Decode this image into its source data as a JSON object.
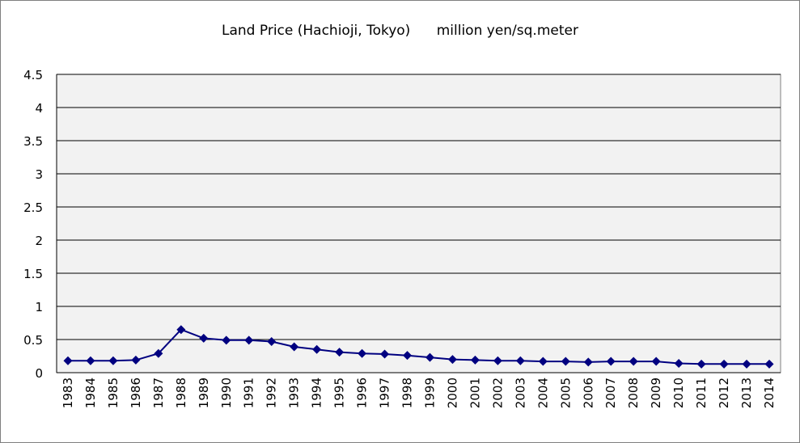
{
  "chart_data": {
    "type": "line",
    "title": "Land Price (Hachioji, Tokyo)      million yen/sq.meter",
    "xlabel": "",
    "ylabel": "",
    "ylim": [
      0,
      4.5
    ],
    "yticks": [
      "0",
      "0.5",
      "1",
      "1.5",
      "2",
      "2.5",
      "3",
      "3.5",
      "4",
      "4.5"
    ],
    "grid": true,
    "legend": "none",
    "categories": [
      "1983",
      "1984",
      "1985",
      "1986",
      "1987",
      "1988",
      "1989",
      "1990",
      "1991",
      "1992",
      "1993",
      "1994",
      "1995",
      "1996",
      "1997",
      "1998",
      "1999",
      "2000",
      "2001",
      "2002",
      "2003",
      "2004",
      "2005",
      "2006",
      "2007",
      "2008",
      "2009",
      "2010",
      "2011",
      "2012",
      "2013",
      "2014"
    ],
    "series": [
      {
        "color": "#000080",
        "marker": "diamond",
        "values": [
          0.18,
          0.18,
          0.18,
          0.19,
          0.29,
          0.65,
          0.52,
          0.49,
          0.49,
          0.47,
          0.39,
          0.35,
          0.31,
          0.29,
          0.28,
          0.26,
          0.23,
          0.2,
          0.19,
          0.18,
          0.18,
          0.17,
          0.17,
          0.16,
          0.17,
          0.17,
          0.17,
          0.14,
          0.13,
          0.13,
          0.13,
          0.13
        ]
      }
    ],
    "colors": {
      "plot_background": "#f2f2f2",
      "gridline": "#000000",
      "series": "#000080"
    }
  }
}
